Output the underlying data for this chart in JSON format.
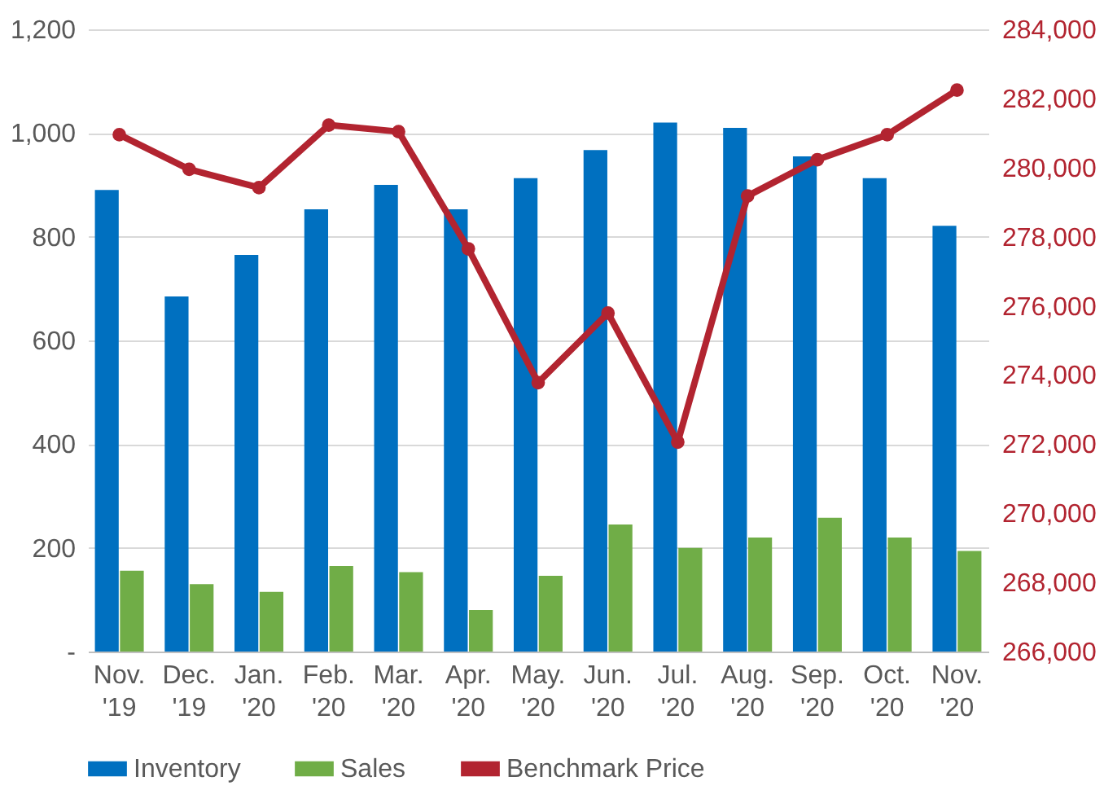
{
  "chart_data": {
    "type": "bar",
    "categories": [
      "Nov. '19",
      "Dec. '19",
      "Jan. '20",
      "Feb. '20",
      "Mar. '20",
      "Apr. '20",
      "May. '20",
      "Jun. '20",
      "Jul. '20",
      "Aug. '20",
      "Sep. '20",
      "Oct. '20",
      "Nov. '20"
    ],
    "series": [
      {
        "name": "Inventory",
        "color": "#0070c0",
        "values": [
          890,
          685,
          765,
          853,
          900,
          853,
          913,
          967,
          1020,
          1010,
          955,
          913,
          821
        ]
      },
      {
        "name": "Sales",
        "color": "#70ad47",
        "values": [
          156,
          130,
          115,
          165,
          153,
          80,
          146,
          245,
          200,
          220,
          258,
          220,
          194
        ]
      },
      {
        "name": "Benchmark Price",
        "type": "line",
        "axis": "y2",
        "color": "#b22430",
        "marker": "circle",
        "values": [
          280950,
          279950,
          279420,
          281230,
          281040,
          277650,
          273780,
          275790,
          272060,
          279180,
          280230,
          280950,
          282240
        ]
      }
    ],
    "ylim": [
      0,
      1200
    ],
    "yticks": [
      {
        "value": 0,
        "label": "-"
      },
      200,
      400,
      600,
      800,
      {
        "value": 1000,
        "label": "1,000"
      },
      {
        "value": 1200,
        "label": "1,200"
      }
    ],
    "y2lim": [
      266000,
      284000
    ],
    "y2ticks": [
      {
        "value": 266000,
        "label": "266,000"
      },
      {
        "value": 268000,
        "label": "268,000"
      },
      {
        "value": 270000,
        "label": "270,000"
      },
      {
        "value": 272000,
        "label": "272,000"
      },
      {
        "value": 274000,
        "label": "274,000"
      },
      {
        "value": 276000,
        "label": "276,000"
      },
      {
        "value": 278000,
        "label": "278,000"
      },
      {
        "value": 280000,
        "label": "280,000"
      },
      {
        "value": 282000,
        "label": "282,000"
      },
      {
        "value": 284000,
        "label": "284,000"
      }
    ],
    "grid": "y",
    "legend": "bottom"
  }
}
